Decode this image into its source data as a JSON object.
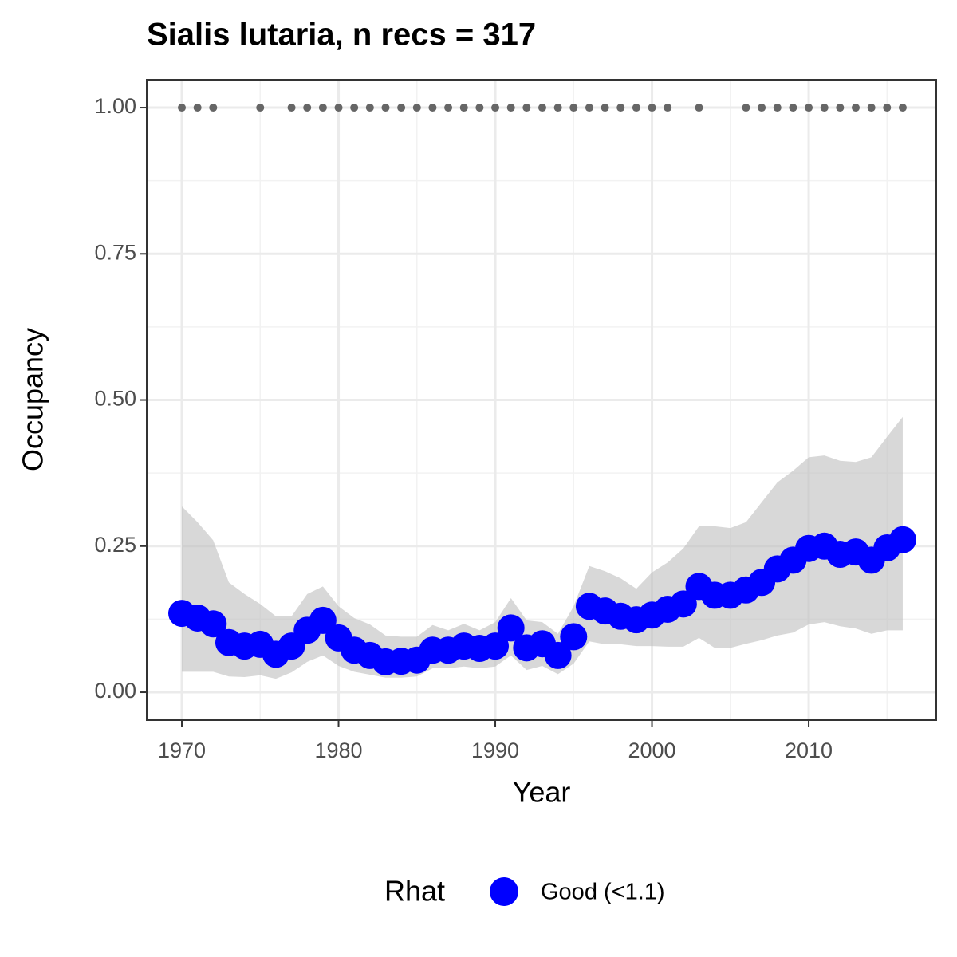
{
  "chart_data": {
    "type": "occupancy",
    "title": "Sialis lutaria, n recs = 317",
    "x_label": "Year",
    "y_label": "Occupancy",
    "legend_title": "Rhat",
    "legend_position": "bottom",
    "x": [
      1970,
      1971,
      1972,
      1973,
      1974,
      1975,
      1976,
      1977,
      1978,
      1979,
      1980,
      1981,
      1982,
      1983,
      1984,
      1985,
      1986,
      1987,
      1988,
      1989,
      1990,
      1991,
      1992,
      1993,
      1994,
      1995,
      1996,
      1997,
      1998,
      1999,
      2000,
      2001,
      2002,
      2003,
      2004,
      2005,
      2006,
      2007,
      2008,
      2009,
      2010,
      2011,
      2012,
      2013,
      2014,
      2015,
      2016
    ],
    "series": [
      {
        "name": "Good (<1.1)",
        "color": "#0000ff",
        "values": [
          0.135,
          0.127,
          0.117,
          0.085,
          0.079,
          0.082,
          0.065,
          0.079,
          0.106,
          0.123,
          0.093,
          0.072,
          0.063,
          0.052,
          0.053,
          0.055,
          0.072,
          0.072,
          0.079,
          0.075,
          0.079,
          0.11,
          0.076,
          0.083,
          0.063,
          0.095,
          0.147,
          0.139,
          0.13,
          0.124,
          0.132,
          0.142,
          0.151,
          0.181,
          0.166,
          0.166,
          0.175,
          0.188,
          0.211,
          0.226,
          0.246,
          0.25,
          0.236,
          0.24,
          0.226,
          0.247,
          0.261
        ]
      }
    ],
    "band": {
      "color": "#bebebe",
      "upper": [
        0.318,
        0.291,
        0.26,
        0.188,
        0.168,
        0.151,
        0.13,
        0.13,
        0.168,
        0.181,
        0.147,
        0.127,
        0.116,
        0.097,
        0.095,
        0.095,
        0.115,
        0.106,
        0.117,
        0.106,
        0.12,
        0.161,
        0.123,
        0.12,
        0.1,
        0.147,
        0.216,
        0.207,
        0.195,
        0.177,
        0.205,
        0.222,
        0.246,
        0.284,
        0.284,
        0.281,
        0.291,
        0.325,
        0.359,
        0.379,
        0.402,
        0.405,
        0.396,
        0.394,
        0.402,
        0.437,
        0.471
      ],
      "lower": [
        0.035,
        0.035,
        0.035,
        0.027,
        0.026,
        0.029,
        0.023,
        0.034,
        0.052,
        0.063,
        0.045,
        0.035,
        0.03,
        0.025,
        0.025,
        0.027,
        0.041,
        0.041,
        0.044,
        0.041,
        0.044,
        0.063,
        0.038,
        0.045,
        0.031,
        0.049,
        0.087,
        0.082,
        0.082,
        0.079,
        0.079,
        0.078,
        0.078,
        0.093,
        0.076,
        0.076,
        0.083,
        0.089,
        0.097,
        0.102,
        0.116,
        0.12,
        0.113,
        0.109,
        0.1,
        0.106,
        0.106
      ]
    },
    "records": {
      "color": "#666666",
      "x": [
        1970,
        1971,
        1972,
        1975,
        1977,
        1978,
        1979,
        1980,
        1981,
        1982,
        1983,
        1984,
        1985,
        1986,
        1987,
        1988,
        1989,
        1990,
        1991,
        1992,
        1993,
        1994,
        1995,
        1996,
        1997,
        1998,
        1999,
        2000,
        2001,
        2003,
        2006,
        2007,
        2008,
        2009,
        2010,
        2011,
        2012,
        2013,
        2014,
        2015,
        2016
      ],
      "values": [
        1,
        1,
        1,
        1,
        1,
        1,
        1,
        1,
        1,
        1,
        1,
        1,
        1,
        1,
        1,
        1,
        1,
        1,
        1,
        1,
        1,
        1,
        1,
        1,
        1,
        1,
        1,
        1,
        1,
        1,
        1,
        1,
        1,
        1,
        1,
        1,
        1,
        1,
        1,
        1,
        1
      ]
    },
    "xlim": [
      1967.76,
      2018.14
    ],
    "ylim": [
      -0.0477,
      1.0478
    ],
    "xticks": [
      1970,
      1980,
      1990,
      2000,
      2010
    ],
    "yticks": [
      {
        "value": 0,
        "label": "0.00"
      },
      {
        "value": 0.25,
        "label": "0.25"
      },
      {
        "value": 0.5,
        "label": "0.50"
      },
      {
        "value": 0.75,
        "label": "0.75"
      },
      {
        "value": 1,
        "label": "1.00"
      }
    ],
    "grid": true
  }
}
